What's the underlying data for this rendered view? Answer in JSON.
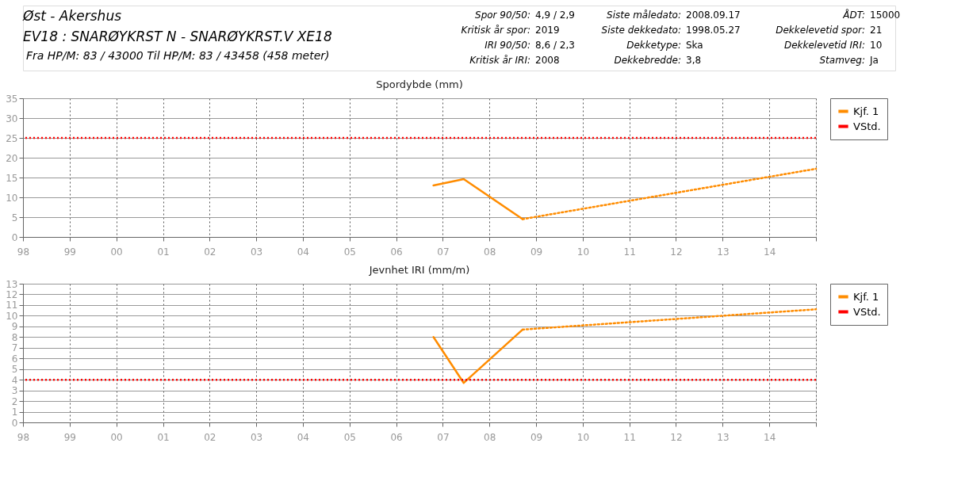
{
  "chart_data": [
    {
      "type": "other",
      "title": "Øst - Akershus",
      "annotations": [
        "EV18 : SNARØYKRST N - SNARØYKRST.V XE18",
        "Fra HP/M: 83 / 43000 Til HP/M: 83 / 43458 (458 meter)",
        "Spor 90/50:",
        "4,9 / 2,9",
        "Kritisk år spor:",
        "2019",
        "IRI 90/50:",
        "8,6 / 2,3",
        "Kritisk år IRI:",
        "2008",
        "Siste måledato:",
        "2008.09.17",
        "Siste dekkedato:",
        "1998.05.27",
        "Dekketype:",
        "Ska",
        "Dekkebredde:",
        "3,8",
        "ÅDT:",
        "15000",
        "Dekkelevetid spor:",
        "21",
        "Dekkelevetid IRI:",
        "10",
        "Stamveg:",
        "Ja"
      ]
    },
    {
      "type": "line",
      "title": "Spordybde (mm)",
      "xlim": [
        "1998",
        "2015"
      ],
      "xticks": [
        {
          "value": "1998",
          "label": "98"
        },
        {
          "value": "1999",
          "label": "99"
        },
        {
          "value": "2000",
          "label": "00"
        },
        {
          "value": "2001",
          "label": "01"
        },
        {
          "value": "2002",
          "label": "02"
        },
        {
          "value": "2003",
          "label": "03"
        },
        {
          "value": "2004",
          "label": "04"
        },
        {
          "value": "2005",
          "label": "05"
        },
        {
          "value": "2006",
          "label": "06"
        },
        {
          "value": "2007",
          "label": "07"
        },
        {
          "value": "2008",
          "label": "08"
        },
        {
          "value": "2009",
          "label": "09"
        },
        {
          "value": "2010",
          "label": "10"
        },
        {
          "value": "2011",
          "label": "11"
        },
        {
          "value": "2012",
          "label": "12"
        },
        {
          "value": "2013",
          "label": "13"
        },
        {
          "value": "2014",
          "label": "14"
        },
        {
          "value": "2015",
          "label": null
        }
      ],
      "ylim": [
        0,
        35
      ],
      "yticks": [
        0,
        5,
        10,
        15,
        20,
        25,
        30,
        35
      ],
      "grid": true,
      "legend": "right",
      "series": [
        {
          "name": "Kjf. 1",
          "color": "#ff8c00",
          "line_style": "solid",
          "x": [
            "2006-10-20",
            "2007-06-14",
            "2008-09-17"
          ],
          "values": [
            13,
            14.6,
            4.5
          ]
        },
        {
          "color": "#ff8c00",
          "line_style": "dotted",
          "x": [
            "2008-09-17",
            "2015"
          ],
          "values": [
            4.5,
            17.2
          ]
        }
      ],
      "ref_lines": [
        {
          "axis": "y",
          "value": 25,
          "label": "VStd.",
          "color": "#ff0000",
          "line_style": "dotted"
        }
      ]
    },
    {
      "type": "line",
      "title": "Jevnhet IRI (mm/m)",
      "xlim": [
        "1998",
        "2015"
      ],
      "xticks": [
        {
          "value": "1998",
          "label": "98"
        },
        {
          "value": "1999",
          "label": "99"
        },
        {
          "value": "2000",
          "label": "00"
        },
        {
          "value": "2001",
          "label": "01"
        },
        {
          "value": "2002",
          "label": "02"
        },
        {
          "value": "2003",
          "label": "03"
        },
        {
          "value": "2004",
          "label": "04"
        },
        {
          "value": "2005",
          "label": "05"
        },
        {
          "value": "2006",
          "label": "06"
        },
        {
          "value": "2007",
          "label": "07"
        },
        {
          "value": "2008",
          "label": "08"
        },
        {
          "value": "2009",
          "label": "09"
        },
        {
          "value": "2010",
          "label": "10"
        },
        {
          "value": "2011",
          "label": "11"
        },
        {
          "value": "2012",
          "label": "12"
        },
        {
          "value": "2013",
          "label": "13"
        },
        {
          "value": "2014",
          "label": "14"
        },
        {
          "value": "2015",
          "label": null
        }
      ],
      "ylim": [
        0,
        13
      ],
      "yticks": [
        0,
        1,
        2,
        3,
        4,
        5,
        6,
        7,
        8,
        9,
        10,
        11,
        12,
        13
      ],
      "grid": true,
      "legend": "right",
      "series": [
        {
          "name": "Kjf. 1",
          "color": "#ff8c00",
          "line_style": "solid",
          "x": [
            "2006-10-20",
            "2007-06-14",
            "2008-09-17"
          ],
          "values": [
            8,
            3.7,
            8.7
          ]
        },
        {
          "color": "#ff8c00",
          "line_style": "dotted",
          "x": [
            "2008-09-17",
            "2015"
          ],
          "values": [
            8.7,
            10.6
          ]
        }
      ],
      "ref_lines": [
        {
          "axis": "y",
          "value": 4,
          "label": "VStd.",
          "color": "#ff0000",
          "line_style": "dotted"
        }
      ]
    }
  ]
}
